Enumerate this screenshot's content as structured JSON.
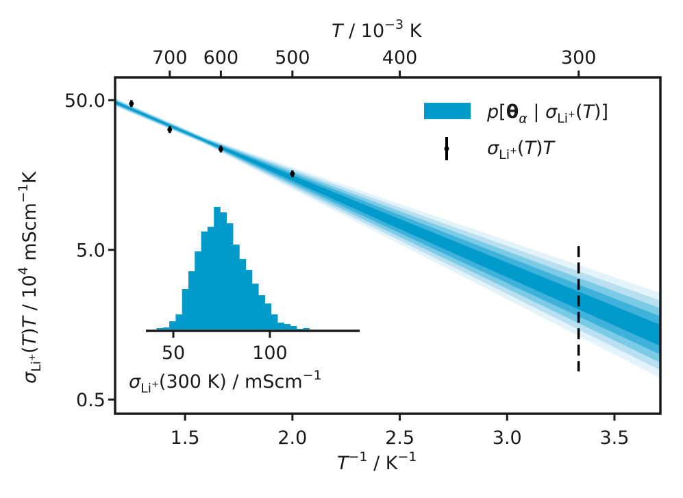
{
  "colors": {
    "band_outer": "#e3f3fa",
    "band_2": "#b8e0f0",
    "band_3": "#7ccbe6",
    "band_4": "#3fb2db",
    "band_core": "#009acb",
    "histogram": "#009acb",
    "axes": "#1a1a1a",
    "data_points": "#000000"
  },
  "chart_data": [
    {
      "type": "line",
      "title": "",
      "xlabel": "T^-1 / K^-1",
      "ylabel": "σ_Li+(T)T / 10^4 mScm^-1K",
      "x2label": "T / 10^-3 K",
      "xlim": [
        1.174,
        3.714
      ],
      "ylim_log10": [
        -0.396,
        1.851
      ],
      "yscale": "log",
      "grid": false,
      "x_ticks": [
        1.5,
        2.0,
        2.5,
        3.0,
        3.5
      ],
      "x_tick_labels": [
        "1.5",
        "2.0",
        "2.5",
        "3.0",
        "3.5"
      ],
      "y_ticks": [
        50.0,
        5.0,
        0.5
      ],
      "y_tick_labels": [
        "50.0",
        "5.0",
        "0.5"
      ],
      "x2_ticks": [
        700,
        600,
        500,
        400,
        300
      ],
      "x2_tick_labels": [
        "700",
        "600",
        "500",
        "400",
        "300"
      ],
      "legend_position": "upper right",
      "legend": [
        {
          "label": "p[θ_α | σ_Li+(T)]",
          "kind": "patch"
        },
        {
          "label": "σ_Li+(T)T",
          "kind": "errorbar"
        }
      ],
      "series": [
        {
          "name": "σ_Li+(T)T",
          "kind": "errorbar",
          "x": [
            1.25,
            1.4286,
            1.6667,
            2.0
          ],
          "T": [
            800,
            700,
            600,
            500
          ],
          "y": [
            47.4,
            31.8,
            23.6,
            16.1
          ]
        },
        {
          "name": "p[θ_α | σ_Li+(T)]",
          "kind": "credible-bands",
          "center_line": {
            "x": [
              1.174,
              3.714
            ],
            "y": [
              48.4,
              1.34
            ]
          },
          "band_fractions": [
            1.0,
            0.82,
            0.64,
            0.45,
            0.25
          ]
        }
      ],
      "annotations": [
        {
          "kind": "vertical-dashed-line",
          "x": 3.333,
          "T": 300,
          "y_range": [
            0.77,
            5.3
          ]
        }
      ]
    },
    {
      "type": "bar",
      "subtype": "histogram",
      "inset": true,
      "title": "",
      "xlabel": "σ_Li+(300 K) / mScm^-1",
      "ylabel": "",
      "xlim": [
        35.8,
        146.5
      ],
      "x_ticks": [
        50,
        100
      ],
      "x_tick_labels": [
        "50",
        "100"
      ],
      "bin_width": 3.3,
      "bin_start": 41.3,
      "values": [
        2,
        3,
        12,
        22,
        59,
        85,
        114,
        143,
        150,
        179,
        171,
        155,
        124,
        103,
        87,
        67,
        50,
        38,
        22,
        10,
        8,
        5,
        1,
        2
      ]
    }
  ],
  "labels": {
    "x_axis": "T",
    "x_axis_sup": "−1",
    "x_axis_unit": " / K",
    "x_axis_unit_sup": "−1",
    "x2_axis": "T",
    "x2_axis_rest": " / 10",
    "x2_axis_sup": "−3",
    "x2_axis_unit": " K",
    "y_axis_sigma": "σ",
    "y_axis_sub": "Li",
    "y_axis_subsup": "+",
    "y_axis_mid": "(",
    "y_axis_T": "T",
    "y_axis_mid2": ")",
    "y_axis_T2": "T",
    "y_axis_rest": " / 10",
    "y_axis_sup": "4",
    "y_axis_unit": " mScm",
    "y_axis_unit_sup": "−1",
    "y_axis_unit_end": "K",
    "inset_sigma": "σ",
    "inset_sub": "Li",
    "inset_subsup": "+",
    "inset_rest": "(300 K) / mScm",
    "inset_sup": "−1",
    "legend1_p": "p",
    "legend1_open": "[",
    "legend1_theta": "θ",
    "legend1_alpha": "α",
    "legend1_bar": " | ",
    "legend1_sigma": "σ",
    "legend1_sub": "Li",
    "legend1_subsup": "+",
    "legend1_paren": "(",
    "legend1_T": "T",
    "legend1_close": ")]",
    "legend2_sigma": "σ",
    "legend2_sub": "Li",
    "legend2_subsup": "+",
    "legend2_paren": "(",
    "legend2_T": "T",
    "legend2_close": ")",
    "legend2_T2": "T"
  }
}
